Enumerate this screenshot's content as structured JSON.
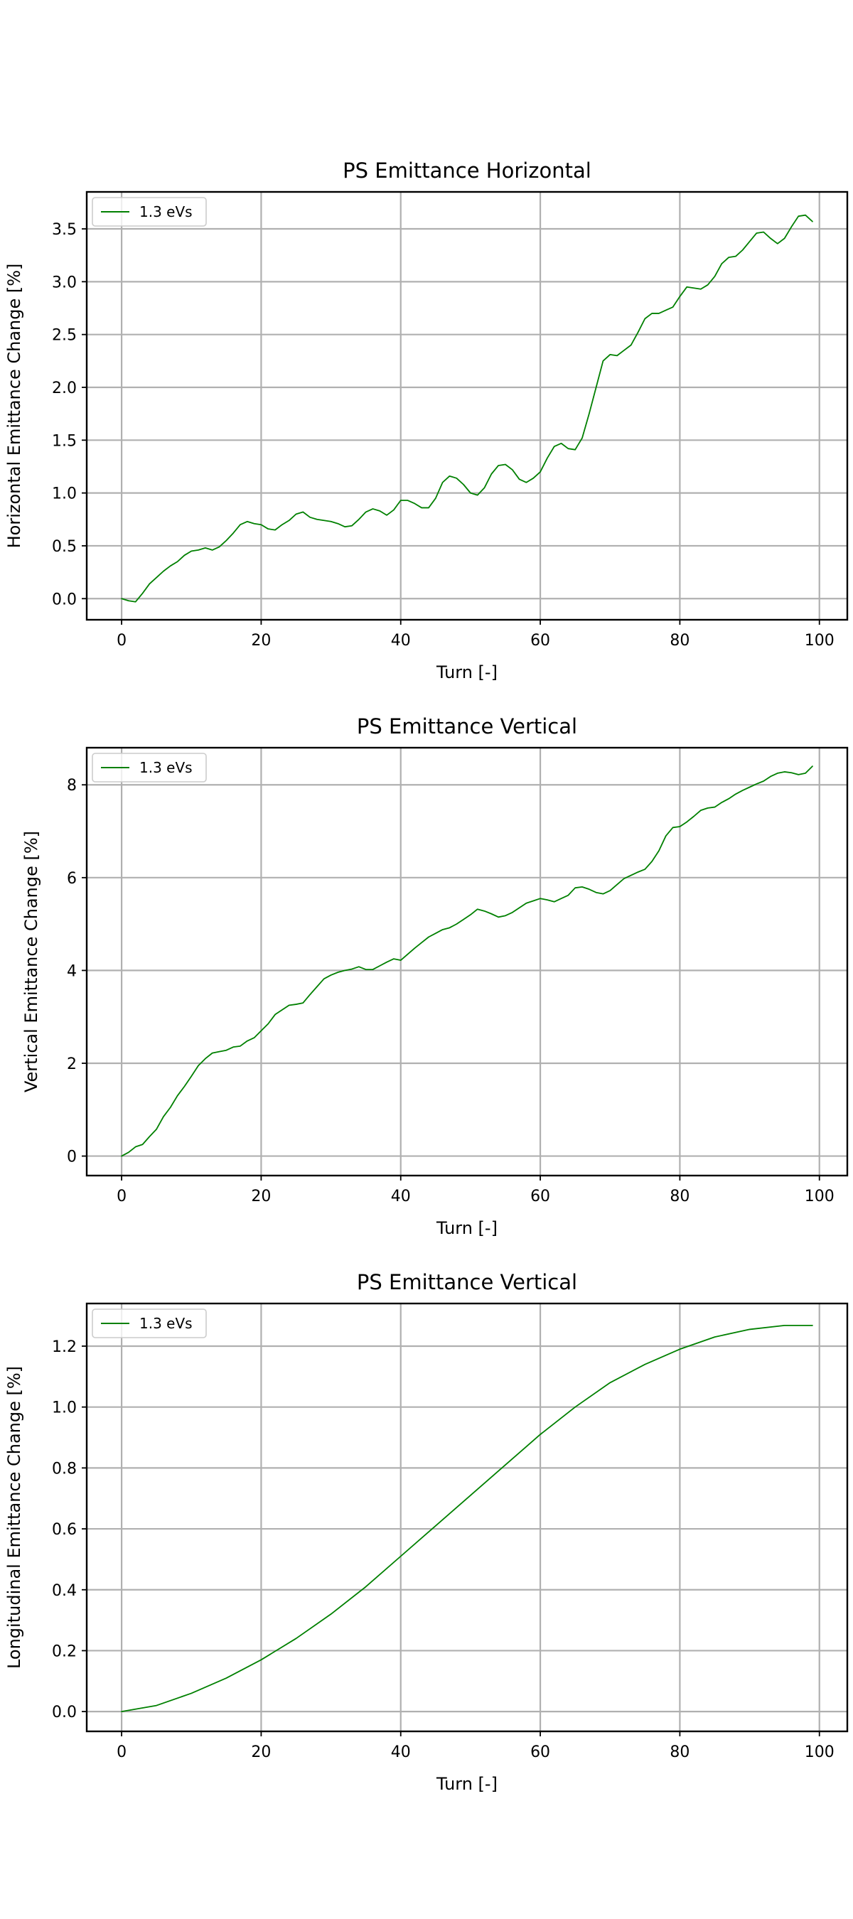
{
  "chart_data": [
    {
      "type": "line",
      "title": "PS Emittance Horizontal",
      "xlabel": "Turn [-]",
      "ylabel": "Horizontal Emittance Change [%]",
      "xlim": [
        -5,
        104
      ],
      "ylim": [
        -0.2,
        3.85
      ],
      "xticks": [
        0,
        20,
        40,
        60,
        80,
        100
      ],
      "yticks": [
        0.0,
        0.5,
        1.0,
        1.5,
        2.0,
        2.5,
        3.0,
        3.5
      ],
      "ytick_labels": [
        "0.0",
        "0.5",
        "1.0",
        "1.5",
        "2.0",
        "2.5",
        "3.0",
        "3.5"
      ],
      "xtick_labels": [
        "0",
        "20",
        "40",
        "60",
        "80",
        "100"
      ],
      "grid": true,
      "legend_position": "top-left",
      "series": [
        {
          "name": "1.3 eVs",
          "color": "#008000",
          "x": [
            0,
            1,
            2,
            3,
            4,
            5,
            6,
            7,
            8,
            9,
            10,
            11,
            12,
            13,
            14,
            15,
            16,
            17,
            18,
            19,
            20,
            21,
            22,
            23,
            24,
            25,
            26,
            27,
            28,
            29,
            30,
            31,
            32,
            33,
            34,
            35,
            36,
            37,
            38,
            39,
            40,
            41,
            42,
            43,
            44,
            45,
            46,
            47,
            48,
            49,
            50,
            51,
            52,
            53,
            54,
            55,
            56,
            57,
            58,
            59,
            60,
            61,
            62,
            63,
            64,
            65,
            66,
            67,
            68,
            69,
            70,
            71,
            72,
            73,
            74,
            75,
            76,
            77,
            78,
            79,
            80,
            81,
            82,
            83,
            84,
            85,
            86,
            87,
            88,
            89,
            90,
            91,
            92,
            93,
            94,
            95,
            96,
            97,
            98,
            99
          ],
          "y": [
            0.0,
            -0.02,
            -0.03,
            0.05,
            0.14,
            0.2,
            0.26,
            0.31,
            0.35,
            0.41,
            0.45,
            0.46,
            0.48,
            0.46,
            0.49,
            0.55,
            0.62,
            0.7,
            0.73,
            0.71,
            0.7,
            0.66,
            0.65,
            0.7,
            0.74,
            0.8,
            0.82,
            0.77,
            0.75,
            0.74,
            0.73,
            0.71,
            0.68,
            0.69,
            0.75,
            0.82,
            0.85,
            0.83,
            0.79,
            0.84,
            0.93,
            0.93,
            0.9,
            0.86,
            0.86,
            0.95,
            1.1,
            1.16,
            1.14,
            1.08,
            1.0,
            0.98,
            1.05,
            1.18,
            1.26,
            1.27,
            1.22,
            1.13,
            1.1,
            1.14,
            1.2,
            1.33,
            1.44,
            1.47,
            1.42,
            1.41,
            1.52,
            1.75,
            2.0,
            2.25,
            2.31,
            2.3,
            2.35,
            2.4,
            2.52,
            2.65,
            2.7,
            2.7,
            2.73,
            2.76,
            2.86,
            2.95,
            2.94,
            2.93,
            2.97,
            3.05,
            3.17,
            3.23,
            3.24,
            3.3,
            3.38,
            3.46,
            3.47,
            3.41,
            3.36,
            3.41,
            3.52,
            3.62,
            3.63,
            3.57
          ]
        }
      ]
    },
    {
      "type": "line",
      "title": "PS Emittance Vertical",
      "xlabel": "Turn [-]",
      "ylabel": "Vertical Emittance Change [%]",
      "xlim": [
        -5,
        104
      ],
      "ylim": [
        -0.42,
        8.8
      ],
      "xticks": [
        0,
        20,
        40,
        60,
        80,
        100
      ],
      "yticks": [
        0,
        2,
        4,
        6,
        8
      ],
      "ytick_labels": [
        "0",
        "2",
        "4",
        "6",
        "8"
      ],
      "xtick_labels": [
        "0",
        "20",
        "40",
        "60",
        "80",
        "100"
      ],
      "grid": true,
      "legend_position": "top-left",
      "series": [
        {
          "name": "1.3 eVs",
          "color": "#008000",
          "x": [
            0,
            1,
            2,
            3,
            4,
            5,
            6,
            7,
            8,
            9,
            10,
            11,
            12,
            13,
            14,
            15,
            16,
            17,
            18,
            19,
            20,
            21,
            22,
            23,
            24,
            25,
            26,
            27,
            28,
            29,
            30,
            31,
            32,
            33,
            34,
            35,
            36,
            37,
            38,
            39,
            40,
            41,
            42,
            43,
            44,
            45,
            46,
            47,
            48,
            49,
            50,
            51,
            52,
            53,
            54,
            55,
            56,
            57,
            58,
            59,
            60,
            61,
            62,
            63,
            64,
            65,
            66,
            67,
            68,
            69,
            70,
            71,
            72,
            73,
            74,
            75,
            76,
            77,
            78,
            79,
            80,
            81,
            82,
            83,
            84,
            85,
            86,
            87,
            88,
            89,
            90,
            91,
            92,
            93,
            94,
            95,
            96,
            97,
            98,
            99
          ],
          "y": [
            0.0,
            0.08,
            0.2,
            0.25,
            0.42,
            0.58,
            0.85,
            1.05,
            1.3,
            1.5,
            1.72,
            1.95,
            2.1,
            2.22,
            2.25,
            2.28,
            2.35,
            2.37,
            2.48,
            2.55,
            2.7,
            2.85,
            3.05,
            3.15,
            3.25,
            3.27,
            3.3,
            3.48,
            3.65,
            3.82,
            3.9,
            3.96,
            4.0,
            4.03,
            4.08,
            4.02,
            4.02,
            4.1,
            4.18,
            4.25,
            4.22,
            4.35,
            4.48,
            4.6,
            4.72,
            4.8,
            4.88,
            4.92,
            5.0,
            5.1,
            5.2,
            5.32,
            5.28,
            5.22,
            5.15,
            5.18,
            5.25,
            5.35,
            5.45,
            5.5,
            5.55,
            5.52,
            5.48,
            5.55,
            5.62,
            5.78,
            5.8,
            5.75,
            5.68,
            5.65,
            5.72,
            5.85,
            5.98,
            6.05,
            6.12,
            6.18,
            6.35,
            6.58,
            6.9,
            7.08,
            7.1,
            7.2,
            7.32,
            7.45,
            7.5,
            7.52,
            7.62,
            7.7,
            7.8,
            7.88,
            7.95,
            8.02,
            8.08,
            8.18,
            8.25,
            8.28,
            8.26,
            8.22,
            8.25,
            8.4
          ]
        }
      ]
    },
    {
      "type": "line",
      "title": "PS Emittance Vertical",
      "xlabel": "Turn [-]",
      "ylabel": "Longitudinal Emittance Change [%]",
      "xlim": [
        -5,
        104
      ],
      "ylim": [
        -0.065,
        1.34
      ],
      "xticks": [
        0,
        20,
        40,
        60,
        80,
        100
      ],
      "yticks": [
        0.0,
        0.2,
        0.4,
        0.6,
        0.8,
        1.0,
        1.2
      ],
      "ytick_labels": [
        "0.0",
        "0.2",
        "0.4",
        "0.6",
        "0.8",
        "1.0",
        "1.2"
      ],
      "xtick_labels": [
        "0",
        "20",
        "40",
        "60",
        "80",
        "100"
      ],
      "grid": true,
      "legend_position": "top-left",
      "series": [
        {
          "name": "1.3 eVs",
          "color": "#008000",
          "x": [
            0,
            5,
            10,
            15,
            20,
            25,
            30,
            35,
            40,
            45,
            50,
            55,
            60,
            65,
            70,
            75,
            80,
            85,
            90,
            95,
            99
          ],
          "y": [
            0.0,
            0.02,
            0.06,
            0.11,
            0.17,
            0.24,
            0.32,
            0.41,
            0.51,
            0.61,
            0.71,
            0.81,
            0.91,
            1.0,
            1.08,
            1.14,
            1.19,
            1.23,
            1.255,
            1.268,
            1.268
          ]
        }
      ]
    }
  ]
}
